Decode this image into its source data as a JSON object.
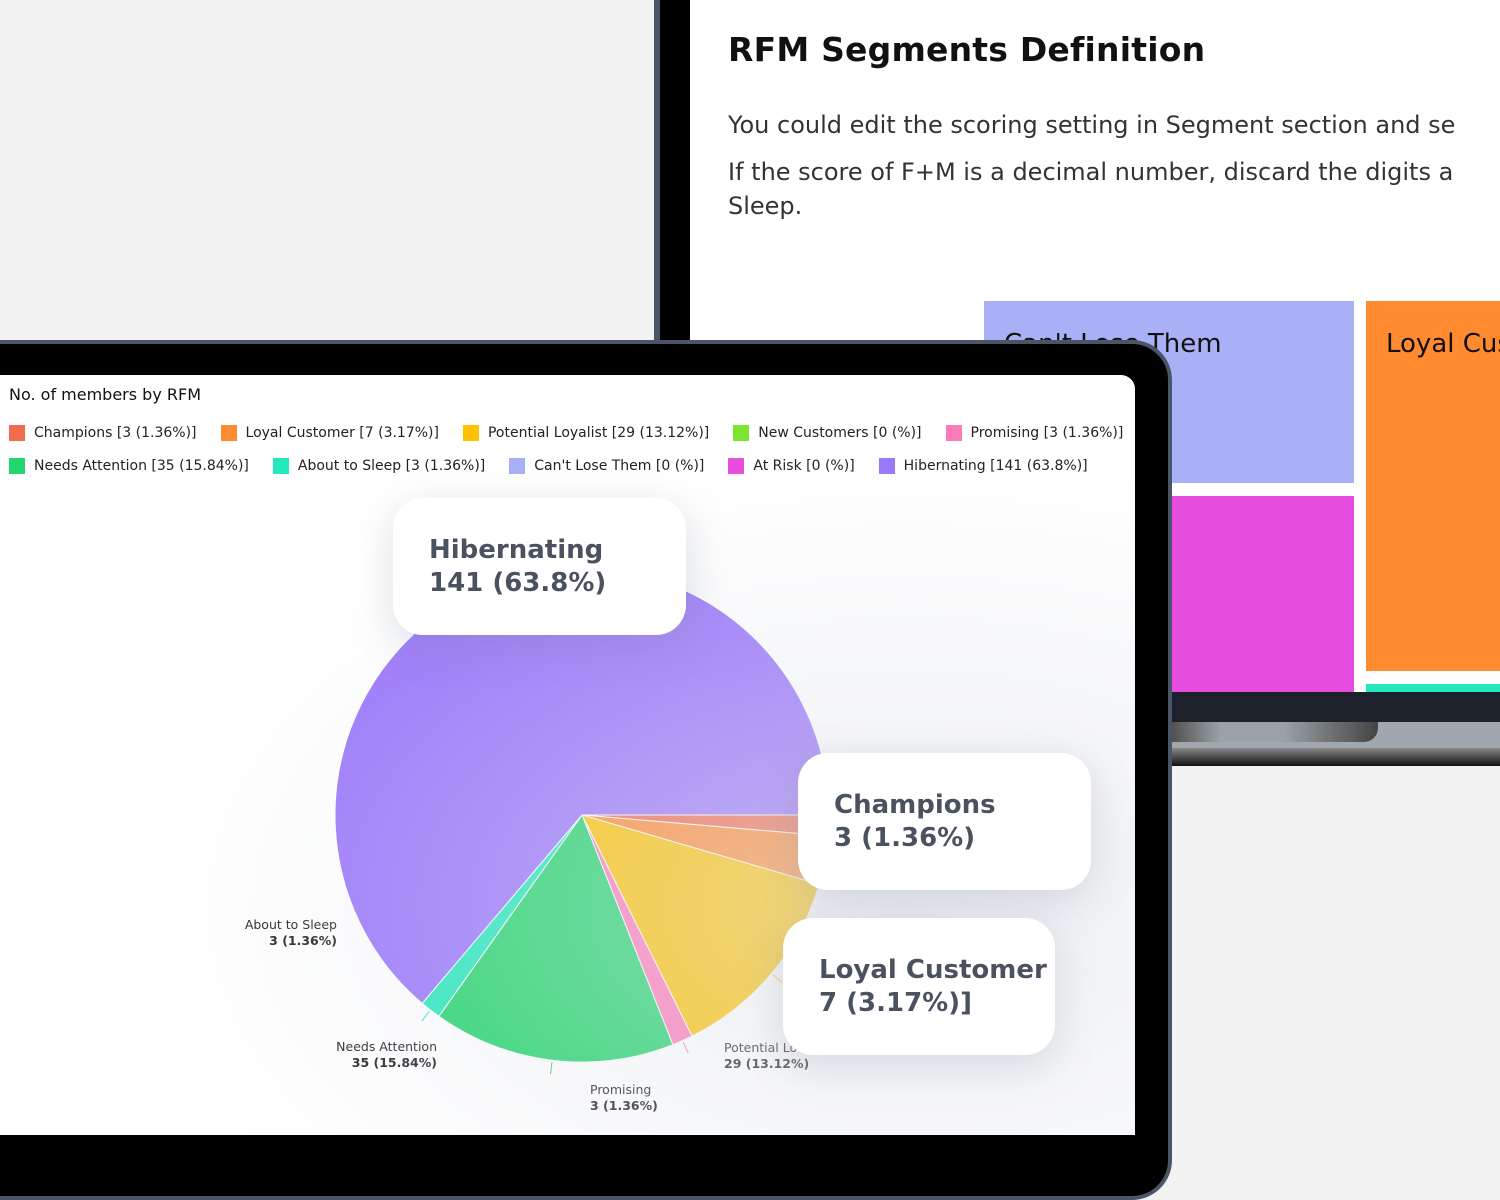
{
  "segments_panel": {
    "title": "RFM Segments Definition",
    "paragraph1": "You could edit the scoring setting in Segment section and se",
    "paragraph2_line1": "If the score of F+M is a decimal number, discard the digits a",
    "paragraph2_line2": "Sleep.",
    "tiles": [
      {
        "label": "Can't Lose Them",
        "color": "#aab0f5"
      },
      {
        "label": "Loyal Cus",
        "color": "#ff8a30"
      },
      {
        "label": "",
        "color": "#e64de0"
      },
      {
        "label": "",
        "color": "#25e8bc"
      }
    ]
  },
  "chart_data": {
    "type": "pie",
    "title": "No. of members by RFM",
    "legend_position": "top",
    "slices": [
      {
        "name": "Champions",
        "value": 3,
        "percent": "1.36%",
        "color": "#f26b4d"
      },
      {
        "name": "Loyal Customer",
        "value": 7,
        "percent": "3.17%",
        "color": "#ff8a30"
      },
      {
        "name": "Potential Loyalist",
        "value": 29,
        "percent": "13.12%",
        "color": "#fdc300"
      },
      {
        "name": "New Customers",
        "value": 0,
        "percent": "",
        "color": "#7de52d"
      },
      {
        "name": "Promising",
        "value": 3,
        "percent": "1.36%",
        "color": "#ff7ab8"
      },
      {
        "name": "Needs Attention",
        "value": 35,
        "percent": "15.84%",
        "color": "#23d56c"
      },
      {
        "name": "About to Sleep",
        "value": 3,
        "percent": "1.36%",
        "color": "#25e8bc"
      },
      {
        "name": "Can't Lose Them",
        "value": 0,
        "percent": "",
        "color": "#aab0f5"
      },
      {
        "name": "At Risk",
        "value": 0,
        "percent": "",
        "color": "#e64de0"
      },
      {
        "name": "Hibernating",
        "value": 141,
        "percent": "63.8%",
        "color": "#9b77fb"
      }
    ],
    "legend_rows": [
      [
        {
          "label": "Champions [3 (1.36%)]",
          "color": "#f26b4d"
        },
        {
          "label": "Loyal Customer [7 (3.17%)]",
          "color": "#ff8a30"
        },
        {
          "label": "Potential Loyalist [29 (13.12%)]",
          "color": "#fdc300"
        },
        {
          "label": "New Customers [0 (%)]",
          "color": "#7de52d"
        },
        {
          "label": "Promising [3 (1.36%)]",
          "color": "#ff7ab8"
        }
      ],
      [
        {
          "label": "Needs Attention [35 (15.84%)]",
          "color": "#23d56c"
        },
        {
          "label": "About to Sleep [3 (1.36%)]",
          "color": "#25e8bc"
        },
        {
          "label": "Can't Lose Them [0 (%)]",
          "color": "#aab0f5"
        },
        {
          "label": "At Risk [0 (%)]",
          "color": "#e64de0"
        },
        {
          "label": "Hibernating [141 (63.8%)]",
          "color": "#9b77fb"
        }
      ]
    ],
    "data_labels": {
      "about_to_sleep": {
        "name": "About to Sleep",
        "value": "3 (1.36%)"
      },
      "needs_attention": {
        "name": "Needs Attention",
        "value": "35 (15.84%)"
      },
      "promising": {
        "name": "Promising",
        "value": "3 (1.36%)"
      },
      "potential_loyalist": {
        "name": "Potential Lo",
        "value": "29 (13.12%)"
      }
    },
    "callouts": {
      "hibernating": {
        "title": "Hibernating",
        "value": "141 (63.8%)"
      },
      "champions": {
        "title": "Champions",
        "value": "3 (1.36%)"
      },
      "loyal": {
        "title": "Loyal Customer",
        "value": "7 (3.17%)]"
      }
    }
  }
}
